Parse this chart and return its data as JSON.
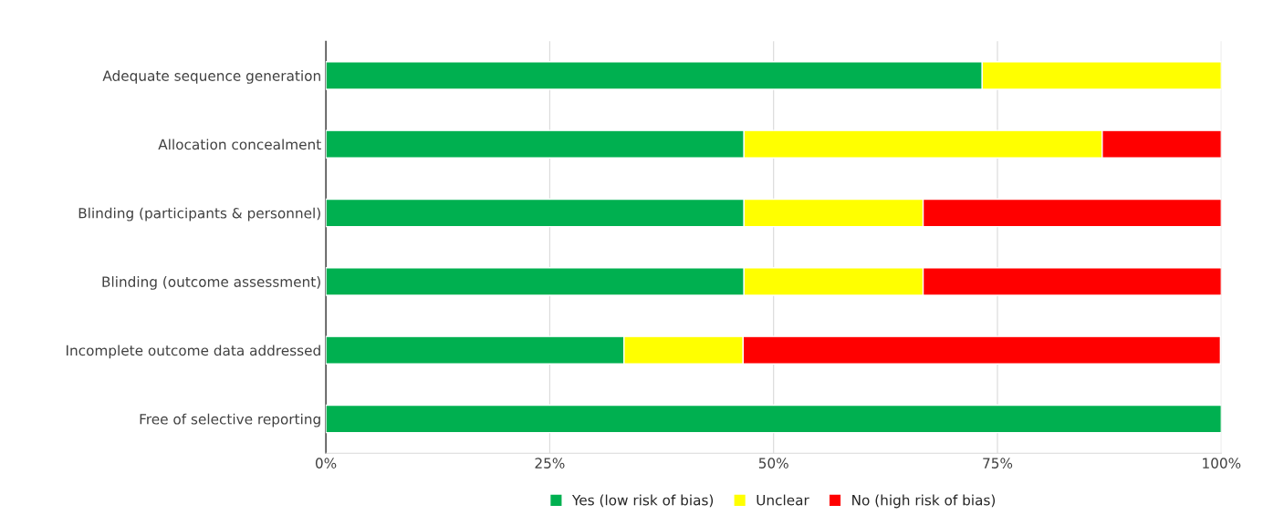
{
  "chart_data": {
    "type": "bar",
    "orientation": "horizontal",
    "stacked": true,
    "categories": [
      "Adequate sequence generation",
      "Allocation concealment",
      "Blinding (participants & personnel)",
      "Blinding (outcome assessment)",
      "Incomplete outcome data addressed",
      "Free of selective reporting"
    ],
    "series": [
      {
        "name": "Yes (low risk of bias)",
        "color": "#00b050",
        "values": [
          73.3,
          46.7,
          46.7,
          46.7,
          33.3,
          100
        ]
      },
      {
        "name": "Unclear",
        "color": "#ffff00",
        "values": [
          26.7,
          40.0,
          20.0,
          20.0,
          13.3,
          null
        ]
      },
      {
        "name": "No (high risk of bias)",
        "color": "#ff0000",
        "values": [
          null,
          13.3,
          33.3,
          33.3,
          53.3,
          null
        ]
      }
    ],
    "xlim": [
      0,
      100
    ],
    "xticks": [
      {
        "value": 0,
        "label": "0%"
      },
      {
        "value": 25,
        "label": "25%"
      },
      {
        "value": 50,
        "label": "50%"
      },
      {
        "value": 75,
        "label": "75%"
      },
      {
        "value": 100,
        "label": "100%"
      }
    ],
    "grid": "x",
    "legend": "bottom"
  }
}
